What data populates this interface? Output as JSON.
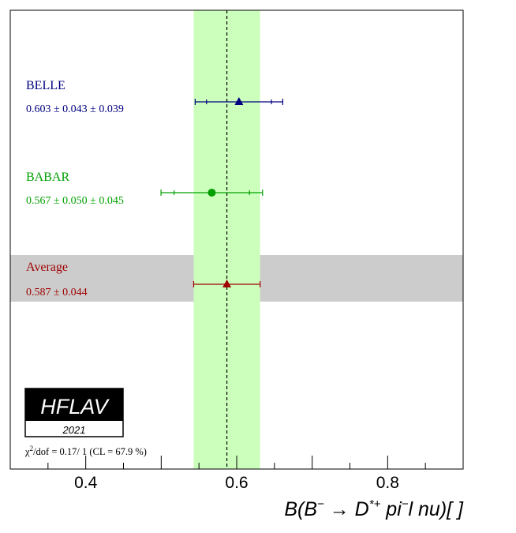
{
  "chart_data": {
    "type": "scatter",
    "xlim": [
      0.3,
      0.9
    ],
    "x_ticks": [
      {
        "value": 0.4,
        "label": "0.4"
      },
      {
        "value": 0.6,
        "label": "0.6"
      },
      {
        "value": 0.8,
        "label": "0.8"
      }
    ],
    "xlabel": {
      "B": "B(B",
      "minus": "−",
      "arrow": " → D",
      "dstar": "*+",
      "pi": "  pi",
      "lnu": "l  nu)[   ]"
    },
    "average": {
      "value": 0.587,
      "error": 0.044,
      "name": "Average",
      "text": "0.587 ± 0.044",
      "color": "#a00000",
      "band_color": "#ccffbb",
      "row_band_color": "#cccccc"
    },
    "measurements": [
      {
        "name": "BELLE",
        "text": "0.603 ± 0.043 ± 0.039",
        "value": 0.603,
        "stat": 0.043,
        "syst": 0.039,
        "marker": "triangle",
        "color": "#000080"
      },
      {
        "name": "BABAR",
        "text": "0.567 ± 0.050 ± 0.045",
        "value": 0.567,
        "stat": 0.05,
        "syst": 0.045,
        "marker": "circle",
        "color": "#00a000"
      }
    ],
    "chi2": {
      "chi": "χ",
      "sup": "2",
      "rest": "/dof = 0.17/ 1 (CL = 67.9 %)"
    },
    "logo": {
      "name": "HFLAV",
      "year": "2021"
    }
  }
}
